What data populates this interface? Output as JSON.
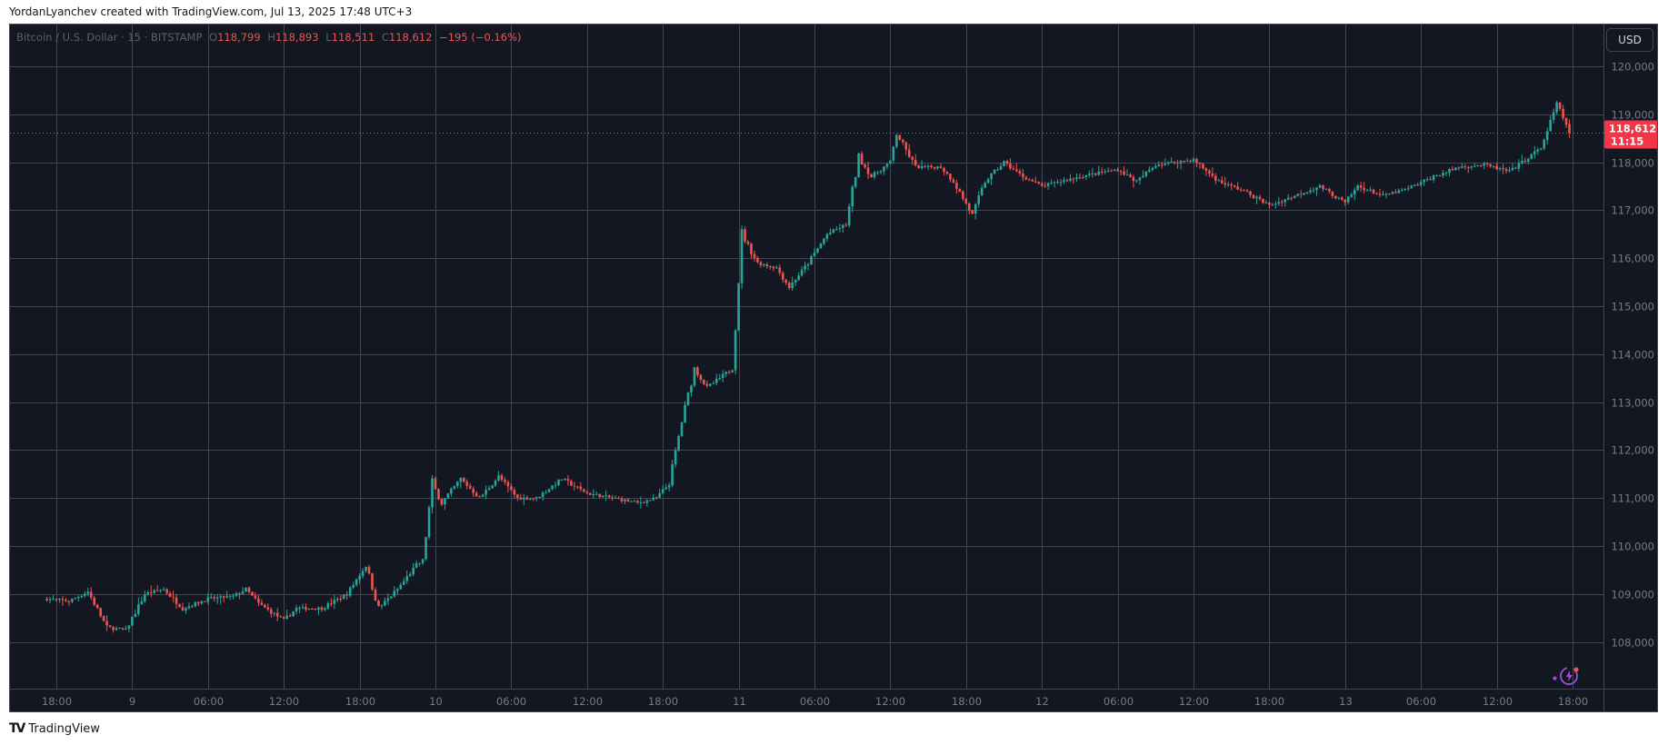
{
  "credit": "YordanLyanchev created with TradingView.com, Jul 13, 2025 17:48 UTC+3",
  "legend": {
    "symbol": "Bitcoin / U.S. Dollar · 15 · BITSTAMP",
    "open_label": "O",
    "open": "118,799",
    "high_label": "H",
    "high": "118,893",
    "low_label": "L",
    "low": "118,511",
    "close_label": "C",
    "close": "118,612",
    "change": "−195 (−0.16%)"
  },
  "currency_button": "USD",
  "last_price": {
    "price": "118,612",
    "countdown": "11:15"
  },
  "footer": {
    "logo_icon": "tradingview-logo-icon",
    "brand": "TradingView"
  },
  "colors": {
    "background": "#131722",
    "grid": "#434651",
    "up": "#26a69a",
    "down": "#ef5350",
    "axis_text": "#787b86",
    "last_price_bg": "#f23645",
    "assistant_icon": "#9c4fd8"
  },
  "chart_data": {
    "type": "candlestick",
    "title": "Bitcoin / U.S. Dollar · 15 · BITSTAMP",
    "interval": "15m",
    "xlabel": "",
    "ylabel": "USD",
    "ylim": [
      107100,
      120300
    ],
    "grid": true,
    "y_ticks": [
      120000,
      119000,
      118000,
      117000,
      116000,
      115000,
      114000,
      113000,
      112000,
      111000,
      110000,
      109000,
      108000
    ],
    "y_tick_labels": [
      "120,000",
      "119,000",
      "118,000",
      "117,000",
      "116,000",
      "115,000",
      "114,000",
      "113,000",
      "112,000",
      "111,000",
      "110,000",
      "109,000",
      "108,000"
    ],
    "x_tick_labels": [
      "18:00",
      "9",
      "06:00",
      "12:00",
      "18:00",
      "10",
      "06:00",
      "12:00",
      "18:00",
      "11",
      "06:00",
      "12:00",
      "18:00",
      "12",
      "06:00",
      "12:00",
      "18:00",
      "13",
      "06:00",
      "12:00",
      "18:00"
    ],
    "last_ohlc": {
      "open": 118799,
      "high": 118893,
      "low": 118511,
      "close": 118612
    },
    "close_keyframes": [
      {
        "t": "Jul 8 17:15",
        "close": 108900
      },
      {
        "t": "Jul 8 19:00",
        "close": 108850
      },
      {
        "t": "Jul 8 20:30",
        "close": 109050
      },
      {
        "t": "Jul 8 22:00",
        "close": 108300
      },
      {
        "t": "Jul 8 23:30",
        "close": 108250
      },
      {
        "t": "Jul 9 01:00",
        "close": 109000
      },
      {
        "t": "Jul 9 02:30",
        "close": 109100
      },
      {
        "t": "Jul 9 04:00",
        "close": 108700
      },
      {
        "t": "Jul 9 06:00",
        "close": 108900
      },
      {
        "t": "Jul 9 08:00",
        "close": 108950
      },
      {
        "t": "Jul 9 09:00",
        "close": 109100
      },
      {
        "t": "Jul 9 10:00",
        "close": 108800
      },
      {
        "t": "Jul 9 12:00",
        "close": 108450
      },
      {
        "t": "Jul 9 13:00",
        "close": 108700
      },
      {
        "t": "Jul 9 15:00",
        "close": 108700
      },
      {
        "t": "Jul 9 17:00",
        "close": 109000
      },
      {
        "t": "Jul 9 18:30",
        "close": 109600
      },
      {
        "t": "Jul 9 19:30",
        "close": 108700
      },
      {
        "t": "Jul 9 21:00",
        "close": 109100
      },
      {
        "t": "Jul 9 22:30",
        "close": 109600
      },
      {
        "t": "Jul 9 23:00",
        "close": 109700
      },
      {
        "t": "Jul 9 23:45",
        "close": 111300
      },
      {
        "t": "Jul 10 00:30",
        "close": 110900
      },
      {
        "t": "Jul 10 02:00",
        "close": 111400
      },
      {
        "t": "Jul 10 03:30",
        "close": 111000
      },
      {
        "t": "Jul 10 05:00",
        "close": 111450
      },
      {
        "t": "Jul 10 06:30",
        "close": 111000
      },
      {
        "t": "Jul 10 08:00",
        "close": 111000
      },
      {
        "t": "Jul 10 10:00",
        "close": 111400
      },
      {
        "t": "Jul 10 12:00",
        "close": 111100
      },
      {
        "t": "Jul 10 14:00",
        "close": 111000
      },
      {
        "t": "Jul 10 16:00",
        "close": 110900
      },
      {
        "t": "Jul 10 17:30",
        "close": 111000
      },
      {
        "t": "Jul 10 18:30",
        "close": 111300
      },
      {
        "t": "Jul 10 19:30",
        "close": 112600
      },
      {
        "t": "Jul 10 20:30",
        "close": 113700
      },
      {
        "t": "Jul 10 21:30",
        "close": 113300
      },
      {
        "t": "Jul 10 23:30",
        "close": 113700
      },
      {
        "t": "Jul 11 00:15",
        "close": 116500
      },
      {
        "t": "Jul 11 01:30",
        "close": 115900
      },
      {
        "t": "Jul 11 03:00",
        "close": 115800
      },
      {
        "t": "Jul 11 04:00",
        "close": 115400
      },
      {
        "t": "Jul 11 05:30",
        "close": 115900
      },
      {
        "t": "Jul 11 07:00",
        "close": 116500
      },
      {
        "t": "Jul 11 08:30",
        "close": 116700
      },
      {
        "t": "Jul 11 09:30",
        "close": 118100
      },
      {
        "t": "Jul 11 10:30",
        "close": 117700
      },
      {
        "t": "Jul 11 12:00",
        "close": 118000
      },
      {
        "t": "Jul 11 12:30",
        "close": 118600
      },
      {
        "t": "Jul 11 14:00",
        "close": 117900
      },
      {
        "t": "Jul 11 16:00",
        "close": 117900
      },
      {
        "t": "Jul 11 17:00",
        "close": 117600
      },
      {
        "t": "Jul 11 18:30",
        "close": 116900
      },
      {
        "t": "Jul 11 19:30",
        "close": 117600
      },
      {
        "t": "Jul 11 21:00",
        "close": 118000
      },
      {
        "t": "Jul 11 22:30",
        "close": 117700
      },
      {
        "t": "Jul 12 00:00",
        "close": 117500
      },
      {
        "t": "Jul 12 03:00",
        "close": 117700
      },
      {
        "t": "Jul 12 06:00",
        "close": 117850
      },
      {
        "t": "Jul 12 07:30",
        "close": 117600
      },
      {
        "t": "Jul 12 09:00",
        "close": 117950
      },
      {
        "t": "Jul 12 12:00",
        "close": 118050
      },
      {
        "t": "Jul 12 14:00",
        "close": 117600
      },
      {
        "t": "Jul 12 16:00",
        "close": 117400
      },
      {
        "t": "Jul 12 18:00",
        "close": 117100
      },
      {
        "t": "Jul 12 20:00",
        "close": 117300
      },
      {
        "t": "Jul 12 22:00",
        "close": 117500
      },
      {
        "t": "Jul 13 00:00",
        "close": 117150
      },
      {
        "t": "Jul 13 01:00",
        "close": 117500
      },
      {
        "t": "Jul 13 03:00",
        "close": 117300
      },
      {
        "t": "Jul 13 05:00",
        "close": 117450
      },
      {
        "t": "Jul 13 07:00",
        "close": 117700
      },
      {
        "t": "Jul 13 09:00",
        "close": 117900
      },
      {
        "t": "Jul 13 11:00",
        "close": 117950
      },
      {
        "t": "Jul 13 13:00",
        "close": 117800
      },
      {
        "t": "Jul 13 14:00",
        "close": 118000
      },
      {
        "t": "Jul 13 15:30",
        "close": 118300
      },
      {
        "t": "Jul 13 16:45",
        "close": 119200
      },
      {
        "t": "Jul 13 17:30",
        "close": 118799
      },
      {
        "t": "Jul 13 17:45",
        "close": 118612
      }
    ]
  }
}
